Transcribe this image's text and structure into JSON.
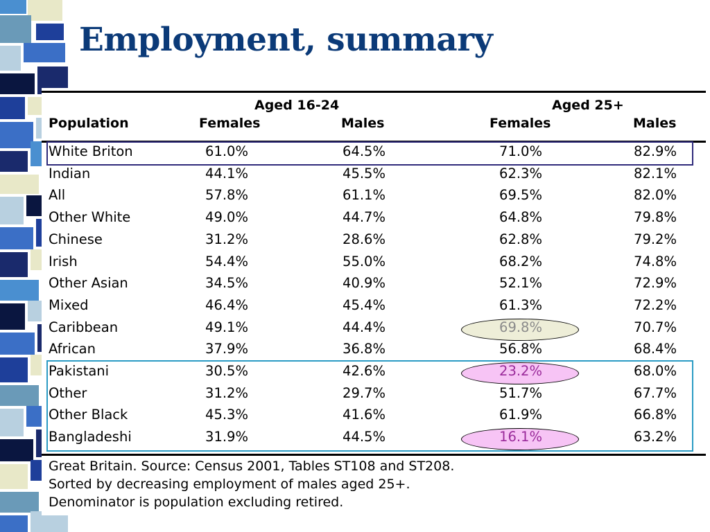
{
  "title": "Employment, summary",
  "table": {
    "header": {
      "group1": "Aged 16-24",
      "group2": "Aged 25+",
      "population": "Population",
      "f1": "Females",
      "m1": "Males",
      "f2": "Females",
      "m2": "Males"
    },
    "rows": [
      {
        "population": "White Briton",
        "f1": "61.0%",
        "m1": "64.5%",
        "f2": "71.0%",
        "m2": "82.9%"
      },
      {
        "population": "Indian",
        "f1": "44.1%",
        "m1": "45.5%",
        "f2": "62.3%",
        "m2": "82.1%"
      },
      {
        "population": "All",
        "f1": "57.8%",
        "m1": "61.1%",
        "f2": "69.5%",
        "m2": "82.0%"
      },
      {
        "population": "Other White",
        "f1": "49.0%",
        "m1": "44.7%",
        "f2": "64.8%",
        "m2": "79.8%"
      },
      {
        "population": "Chinese",
        "f1": "31.2%",
        "m1": "28.6%",
        "f2": "62.8%",
        "m2": "79.2%"
      },
      {
        "population": "Irish",
        "f1": "54.4%",
        "m1": "55.0%",
        "f2": "68.2%",
        "m2": "74.8%"
      },
      {
        "population": "Other Asian",
        "f1": "34.5%",
        "m1": "40.9%",
        "f2": "52.1%",
        "m2": "72.9%"
      },
      {
        "population": "Mixed",
        "f1": "46.4%",
        "m1": "45.4%",
        "f2": "61.3%",
        "m2": "72.2%"
      },
      {
        "population": "Caribbean",
        "f1": "49.1%",
        "m1": "44.4%",
        "f2": "69.8%",
        "m2": "70.7%"
      },
      {
        "population": "African",
        "f1": "37.9%",
        "m1": "36.8%",
        "f2": "56.8%",
        "m2": "68.4%"
      },
      {
        "population": "Pakistani",
        "f1": "30.5%",
        "m1": "42.6%",
        "f2": "23.2%",
        "m2": "68.0%"
      },
      {
        "population": "Other",
        "f1": "31.2%",
        "m1": "29.7%",
        "f2": "51.7%",
        "m2": "67.7%"
      },
      {
        "population": "Other Black",
        "f1": "45.3%",
        "m1": "41.6%",
        "f2": "61.9%",
        "m2": "66.8%"
      },
      {
        "population": "Bangladeshi",
        "f1": "31.9%",
        "m1": "44.5%",
        "f2": "16.1%",
        "m2": "63.2%"
      }
    ],
    "highlights": {
      "white_briton_box_color": "#2e2a7a",
      "lowest_group_box_color": "#2a9bc4",
      "caribbean_ellipse_color": "#eeeed8",
      "low_female_ellipse_color": "#f7c4f5",
      "caribbean_text_color": "#8a8a8a",
      "low_female_text_color": "#9a2a9a"
    }
  },
  "notes": [
    "Great Britain. Source: Census 2001, Tables ST108 and ST208.",
    "Sorted by decreasing employment of males aged 25+.",
    "Denominator is population excluding retired."
  ]
}
